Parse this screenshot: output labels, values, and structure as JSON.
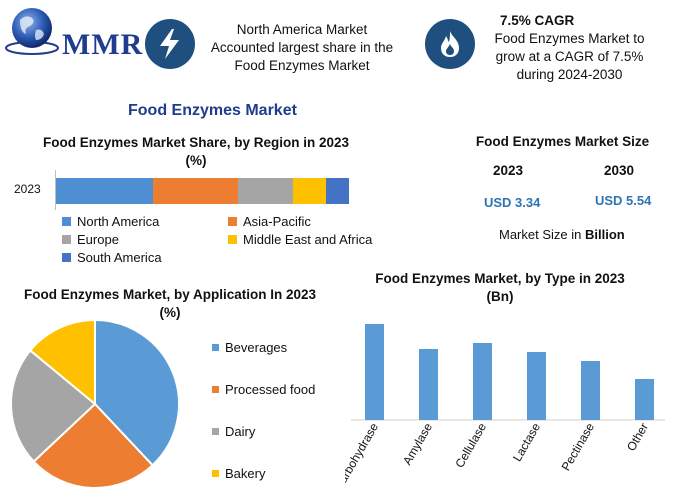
{
  "header": {
    "logo_text": "MMR",
    "info1": {
      "icon": "lightning-icon",
      "lines": [
        "North America Market",
        "Accounted largest share in the",
        "Food Enzymes Market"
      ]
    },
    "info2": {
      "icon": "flame-icon",
      "title": "7.5% CAGR",
      "lines": [
        "Food Enzymes Market to",
        "grow at a CAGR of 7.5%",
        "during 2024-2030"
      ]
    }
  },
  "main_title": "Food Enzymes Market",
  "market_size": {
    "title": "Food Enzymes Market Size",
    "years": [
      "2023",
      "2030"
    ],
    "values": [
      "USD 3.34",
      "USD 5.54"
    ],
    "note_prefix": "Market Size in ",
    "note_unit": "Billion"
  },
  "colors": {
    "north_america": "#4e8fd4",
    "asia_pacific": "#ed7d31",
    "europe": "#a5a5a5",
    "mea": "#ffc000",
    "south_america": "#4472c4",
    "bar": "#5b9bd5",
    "dark_blue": "#1e4f7f"
  },
  "chart_data": [
    {
      "type": "bar",
      "orientation": "horizontal-stacked",
      "title": "Food Enzymes Market Share, by Region in 2023 (%)",
      "categories": [
        "2023"
      ],
      "series": [
        {
          "name": "North America",
          "values": [
            33
          ],
          "color": "#4e8fd4"
        },
        {
          "name": "Asia-Pacific",
          "values": [
            29
          ],
          "color": "#ed7d31"
        },
        {
          "name": "Europe",
          "values": [
            19
          ],
          "color": "#a5a5a5"
        },
        {
          "name": "Middle East and Africa",
          "values": [
            11
          ],
          "color": "#ffc000"
        },
        {
          "name": "South America",
          "values": [
            8
          ],
          "color": "#4472c4"
        }
      ],
      "xlim": [
        0,
        100
      ],
      "legend": "bottom"
    },
    {
      "type": "pie",
      "title": "Food Enzymes Market, by Application In 2023 (%)",
      "labels": [
        "Beverages",
        "Processed food",
        "Dairy",
        "Bakery"
      ],
      "values": [
        38,
        25,
        23,
        14
      ],
      "colors": [
        "#5b9bd5",
        "#ed7d31",
        "#a5a5a5",
        "#ffc000"
      ],
      "legend": "right"
    },
    {
      "type": "bar",
      "title": "Food Enzymes Market, by Type in 2023 (Bn)",
      "categories": [
        "Carbohydrase",
        "Amylase",
        "Cellulase",
        "Lactase",
        "Pectinase",
        "Other"
      ],
      "values": [
        0.96,
        0.71,
        0.77,
        0.68,
        0.59,
        0.41
      ],
      "ylim": [
        0,
        1.2
      ],
      "color": "#5b9bd5",
      "xlabel": "",
      "ylabel": ""
    }
  ]
}
